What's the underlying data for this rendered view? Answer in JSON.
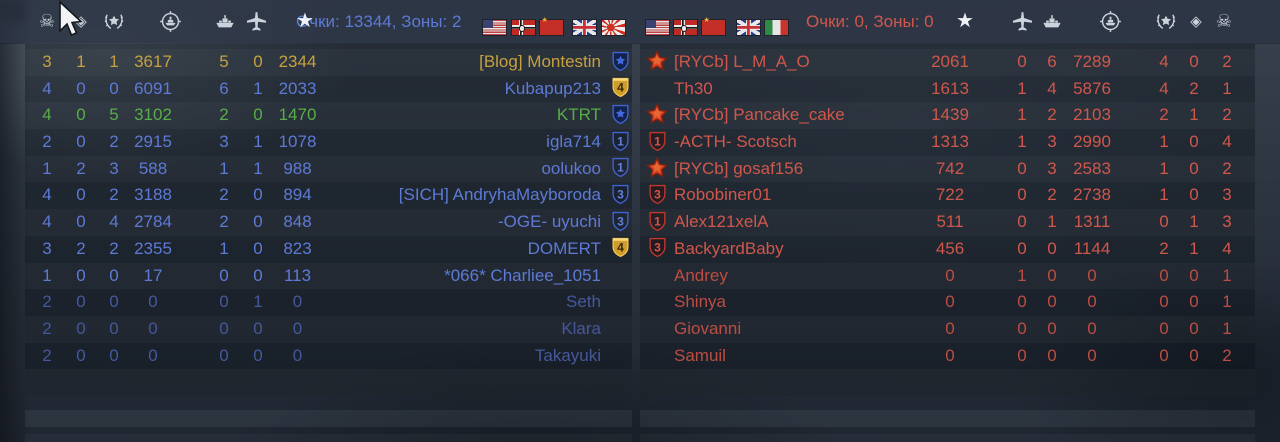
{
  "glyphs": {
    "skull": "☠",
    "diamond": "◈",
    "star": "★"
  },
  "colors": {
    "blue": "#5d7ad6",
    "gold": "#c7a13f",
    "green": "#58ad48",
    "red": "#d0574b",
    "bot-blue": "#46589c",
    "bot-red": "#bd4d42",
    "icon": "#cdd3dc"
  },
  "header": {
    "left": {
      "stat_icons": [
        "skull",
        "diamond",
        "wreath",
        "target-ship",
        "boat",
        "plane",
        "star"
      ],
      "score_text": "Очки: 13344, Зоны: 2",
      "flags": [
        "usa",
        "germany",
        "ussr",
        "uk",
        "japan"
      ]
    },
    "right": {
      "flags": [
        "usa",
        "germany",
        "ussr",
        "uk",
        "italy"
      ],
      "score_text": "Очки: 0, Зоны: 0",
      "stat_icons": [
        "star",
        "plane",
        "boat",
        "target-ship",
        "wreath",
        "diamond",
        "skull"
      ]
    }
  },
  "left_team": {
    "columns": [
      "skull",
      "diamond",
      "wreath",
      "target-ship",
      "boat",
      "plane",
      "star"
    ],
    "rows": [
      {
        "name": "[Blog] Montestin",
        "color": "gold",
        "badge": {
          "style": "blue-star"
        },
        "cells": [
          3,
          1,
          1,
          3617,
          5,
          0,
          2344
        ]
      },
      {
        "name": "Kubapup213",
        "color": "blue",
        "badge": {
          "style": "gold",
          "label": "4"
        },
        "cells": [
          4,
          0,
          0,
          6091,
          6,
          1,
          2033
        ]
      },
      {
        "name": "KTRT",
        "color": "green",
        "badge": {
          "style": "blue-star"
        },
        "cells": [
          4,
          0,
          5,
          3102,
          2,
          0,
          1470
        ]
      },
      {
        "name": "igla714",
        "color": "blue",
        "badge": {
          "style": "blue",
          "label": "1"
        },
        "cells": [
          2,
          0,
          2,
          2915,
          3,
          1,
          1078
        ]
      },
      {
        "name": "oolukoo",
        "color": "blue",
        "badge": {
          "style": "blue",
          "label": "1"
        },
        "cells": [
          1,
          2,
          3,
          588,
          1,
          1,
          988
        ]
      },
      {
        "name": "[SICH] AndryhaMayboroda",
        "color": "blue",
        "badge": {
          "style": "blue",
          "label": "3"
        },
        "cells": [
          4,
          0,
          2,
          3188,
          2,
          0,
          894
        ]
      },
      {
        "name": "-OGE- uyuchi",
        "color": "blue",
        "badge": {
          "style": "blue",
          "label": "3"
        },
        "cells": [
          4,
          0,
          4,
          2784,
          2,
          0,
          848
        ]
      },
      {
        "name": "DOMERT",
        "color": "blue",
        "badge": {
          "style": "gold",
          "label": "4"
        },
        "cells": [
          3,
          2,
          2,
          2355,
          1,
          0,
          823
        ]
      },
      {
        "name": "*066* Charliee_1051",
        "color": "blue",
        "badge": null,
        "cells": [
          1,
          0,
          0,
          17,
          0,
          0,
          113
        ]
      },
      {
        "name": "Seth",
        "color": "bot",
        "badge": null,
        "cells": [
          2,
          0,
          0,
          0,
          0,
          1,
          0
        ]
      },
      {
        "name": "Klara",
        "color": "bot",
        "badge": null,
        "cells": [
          2,
          0,
          0,
          0,
          0,
          0,
          0
        ]
      },
      {
        "name": "Takayuki",
        "color": "bot",
        "badge": null,
        "cells": [
          2,
          0,
          0,
          0,
          0,
          0,
          0
        ]
      }
    ]
  },
  "right_team": {
    "columns": [
      "star",
      "plane",
      "boat",
      "target-ship",
      "wreath",
      "diamond",
      "skull"
    ],
    "rows": [
      {
        "name": "[RYCb] L_M_A_O",
        "color": "red",
        "badge": {
          "style": "red-star"
        },
        "cells": [
          2061,
          0,
          6,
          7289,
          4,
          0,
          2
        ]
      },
      {
        "name": "Th30",
        "color": "red",
        "badge": null,
        "cells": [
          1613,
          1,
          4,
          5876,
          4,
          2,
          1
        ]
      },
      {
        "name": "[RYCb] Pancake_cake",
        "color": "red",
        "badge": {
          "style": "red-star"
        },
        "cells": [
          1439,
          1,
          2,
          2103,
          2,
          1,
          2
        ]
      },
      {
        "name": "-ACTH- Scotsch",
        "color": "red",
        "badge": {
          "style": "red",
          "label": "1"
        },
        "cells": [
          1313,
          1,
          3,
          2990,
          1,
          0,
          4
        ]
      },
      {
        "name": "[RYCb] gosaf156",
        "color": "red",
        "badge": {
          "style": "red-star"
        },
        "cells": [
          742,
          0,
          3,
          2583,
          1,
          0,
          2
        ]
      },
      {
        "name": "Robobiner01",
        "color": "red",
        "badge": {
          "style": "red",
          "label": "3"
        },
        "cells": [
          722,
          0,
          2,
          2738,
          1,
          0,
          3
        ]
      },
      {
        "name": "Alex121xelA",
        "color": "red",
        "badge": {
          "style": "red",
          "label": "1"
        },
        "cells": [
          511,
          0,
          1,
          1311,
          0,
          1,
          3
        ]
      },
      {
        "name": "BackyardBaby",
        "color": "red",
        "badge": {
          "style": "red",
          "label": "3"
        },
        "cells": [
          456,
          0,
          0,
          1144,
          2,
          1,
          4
        ]
      },
      {
        "name": "Andrey",
        "color": "botred",
        "badge": null,
        "cells": [
          0,
          1,
          0,
          0,
          0,
          0,
          1
        ]
      },
      {
        "name": "Shinya",
        "color": "botred",
        "badge": null,
        "cells": [
          0,
          0,
          0,
          0,
          0,
          0,
          1
        ]
      },
      {
        "name": "Giovanni",
        "color": "botred",
        "badge": null,
        "cells": [
          0,
          0,
          0,
          0,
          0,
          0,
          1
        ]
      },
      {
        "name": "Samuil",
        "color": "botred",
        "badge": null,
        "cells": [
          0,
          0,
          0,
          0,
          0,
          0,
          2
        ]
      }
    ]
  }
}
